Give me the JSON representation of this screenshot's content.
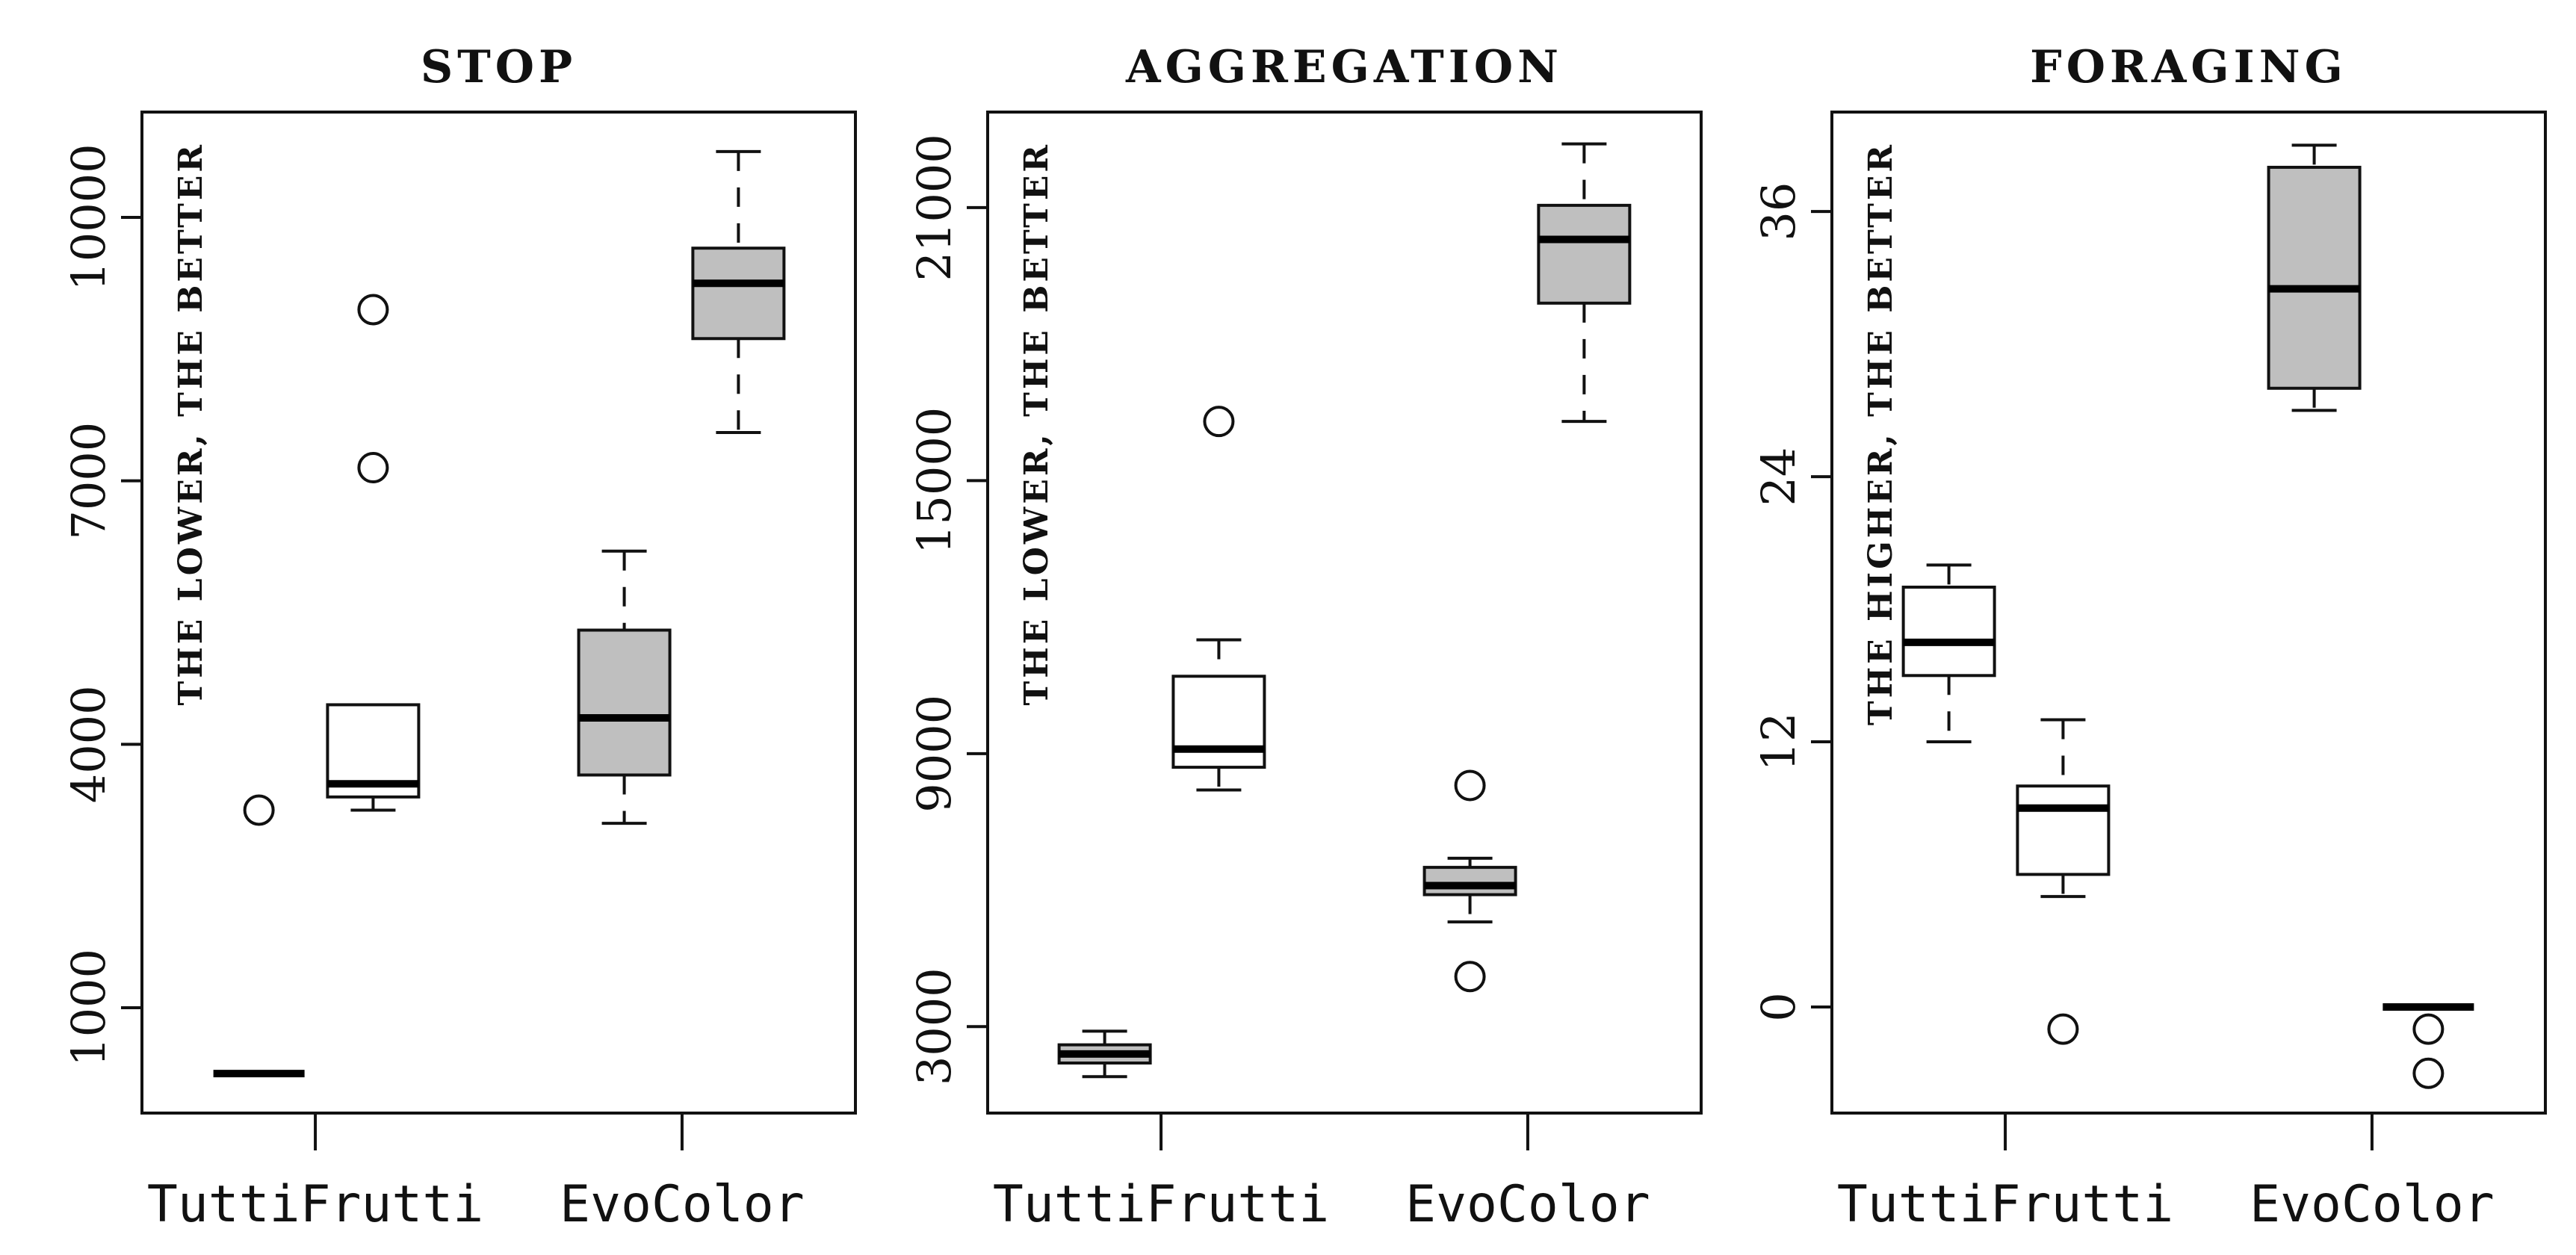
{
  "chart_data": [
    {
      "type": "boxplot",
      "title": "STOP",
      "note": "THE LOWER, THE BETTER",
      "categories": [
        "TuttiFrutti",
        "EvoColor"
      ],
      "yticks": [
        1000,
        4000,
        7000,
        10000
      ],
      "ylim": [
        -200,
        11200
      ],
      "boxes": [
        {
          "category": "TuttiFrutti",
          "fill": "#ffffff",
          "whisker_low": 250,
          "q1": 250,
          "median": 250,
          "q3": 250,
          "whisker_high": 250,
          "outliers": [
            3250
          ]
        },
        {
          "category": "TuttiFrutti",
          "fill": "#ffffff",
          "whisker_low": 3250,
          "q1": 3400,
          "median": 3550,
          "q3": 4450,
          "whisker_high": 4450,
          "outliers": [
            7150,
            8950
          ]
        },
        {
          "category": "EvoColor",
          "fill": "#bfbfbf",
          "whisker_low": 3100,
          "q1": 3650,
          "median": 4300,
          "q3": 5300,
          "whisker_high": 6200,
          "outliers": []
        },
        {
          "category": "EvoColor",
          "fill": "#bfbfbf",
          "whisker_low": 7550,
          "q1": 8620,
          "median": 9250,
          "q3": 9650,
          "whisker_high": 10750,
          "outliers": []
        }
      ]
    },
    {
      "type": "boxplot",
      "title": "AGGREGATION",
      "note": "THE LOWER, THE BETTER",
      "categories": [
        "TuttiFrutti",
        "EvoColor"
      ],
      "yticks": [
        3000,
        9000,
        15000,
        21000
      ],
      "ylim": [
        1100,
        23100
      ],
      "boxes": [
        {
          "category": "TuttiFrutti",
          "fill": "#bfbfbf",
          "whisker_low": 1900,
          "q1": 2200,
          "median": 2400,
          "q3": 2600,
          "whisker_high": 2900,
          "outliers": []
        },
        {
          "category": "TuttiFrutti",
          "fill": "#ffffff",
          "whisker_low": 8200,
          "q1": 8700,
          "median": 9100,
          "q3": 10700,
          "whisker_high": 11500,
          "outliers": [
            16300
          ]
        },
        {
          "category": "EvoColor",
          "fill": "#bfbfbf",
          "whisker_low": 5300,
          "q1": 5900,
          "median": 6100,
          "q3": 6500,
          "whisker_high": 6700,
          "outliers": [
            4100,
            8300
          ]
        },
        {
          "category": "EvoColor",
          "fill": "#bfbfbf",
          "whisker_low": 16300,
          "q1": 18900,
          "median": 20300,
          "q3": 21050,
          "whisker_high": 22400,
          "outliers": []
        }
      ]
    },
    {
      "type": "boxplot",
      "title": "FORAGING",
      "note": "THE HIGHER, THE BETTER",
      "categories": [
        "TuttiFrutti",
        "EvoColor"
      ],
      "yticks": [
        0,
        12,
        24,
        36
      ],
      "ylim": [
        -4.8,
        40.5
      ],
      "boxes": [
        {
          "category": "TuttiFrutti",
          "fill": "#ffffff",
          "whisker_low": 12,
          "q1": 15,
          "median": 16.5,
          "q3": 19,
          "whisker_high": 20,
          "outliers": []
        },
        {
          "category": "TuttiFrutti",
          "fill": "#ffffff",
          "whisker_low": 5,
          "q1": 6,
          "median": 9,
          "q3": 10,
          "whisker_high": 13,
          "outliers": [
            -1
          ]
        },
        {
          "category": "EvoColor",
          "fill": "#bfbfbf",
          "whisker_low": 27,
          "q1": 28,
          "median": 32.5,
          "q3": 38,
          "whisker_high": 39,
          "outliers": []
        },
        {
          "category": "EvoColor",
          "fill": "#bfbfbf",
          "whisker_low": 0,
          "q1": 0,
          "median": 0,
          "q3": 0,
          "whisker_high": 0,
          "outliers": [
            -1,
            -3
          ]
        }
      ]
    }
  ]
}
